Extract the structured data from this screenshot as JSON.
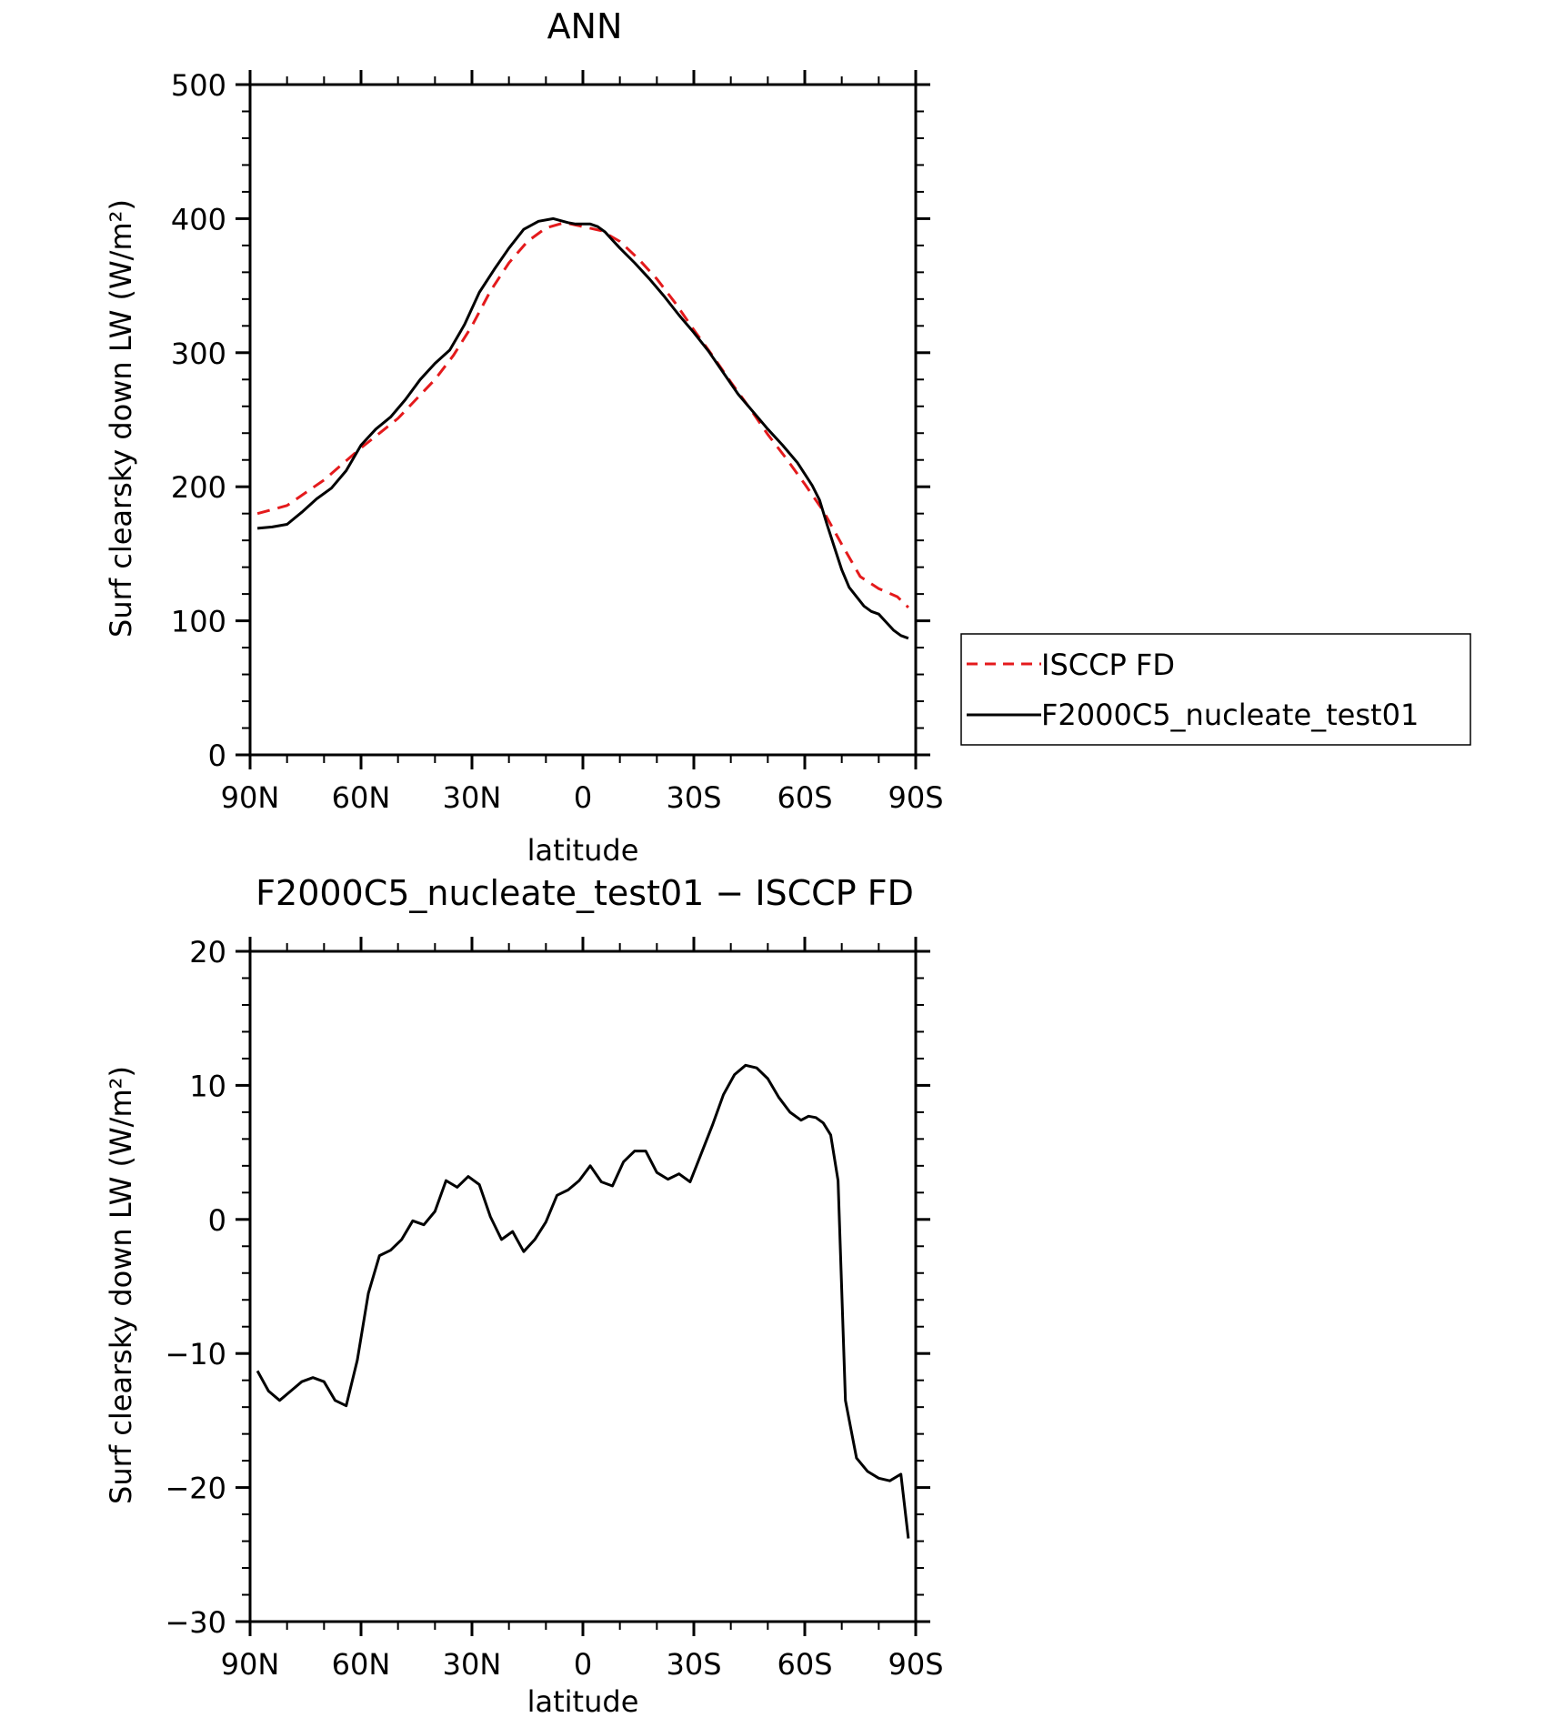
{
  "chart_data": [
    {
      "type": "line",
      "title": "ANN",
      "xlabel": "latitude",
      "ylabel": "Surf clearsky down LW (W/m²)",
      "xlim": [
        90,
        -90
      ],
      "ylim": [
        0,
        500
      ],
      "xticks": [
        90,
        60,
        30,
        0,
        -30,
        -60,
        -90
      ],
      "xtick_labels": [
        "90N",
        "60N",
        "30N",
        "0",
        "30S",
        "60S",
        "90S"
      ],
      "yticks": [
        0,
        100,
        200,
        300,
        400,
        500
      ],
      "ytick_labels": [
        "0",
        "100",
        "200",
        "300",
        "400",
        "500"
      ],
      "legend": {
        "placement": "right"
      },
      "series": [
        {
          "name": "ISCCP FD",
          "color": "#e41a1c",
          "dash": "dashed",
          "x": [
            88,
            80,
            70,
            60,
            50,
            40,
            35,
            30,
            25,
            20,
            15,
            10,
            5,
            0,
            -5,
            -10,
            -15,
            -20,
            -25,
            -30,
            -35,
            -40,
            -45,
            -50,
            -55,
            -60,
            -65,
            -70,
            -75,
            -80,
            -85,
            -88
          ],
          "y": [
            180,
            186,
            205,
            229,
            251,
            280,
            298,
            320,
            346,
            367,
            383,
            393,
            397,
            394,
            391,
            383,
            370,
            355,
            337,
            317,
            298,
            278,
            259,
            239,
            221,
            202,
            182,
            157,
            133,
            124,
            118,
            110
          ]
        },
        {
          "name": "F2000C5_nucleate_test01",
          "color": "#000000",
          "dash": "solid",
          "x": [
            88,
            84,
            80,
            76,
            72,
            68,
            64,
            60,
            56,
            52,
            48,
            44,
            40,
            36,
            32,
            28,
            24,
            20,
            16,
            12,
            8,
            4,
            2,
            0,
            -2,
            -4,
            -6,
            -8,
            -10,
            -14,
            -18,
            -22,
            -26,
            -30,
            -34,
            -38,
            -42,
            -46,
            -50,
            -54,
            -58,
            -62,
            -64,
            -66,
            -68,
            -70,
            -72,
            -74,
            -76,
            -78,
            -80,
            -82,
            -84,
            -86,
            -88
          ],
          "y": [
            169,
            170,
            172,
            181,
            191,
            199,
            212,
            231,
            243,
            252,
            265,
            280,
            292,
            302,
            321,
            345,
            362,
            378,
            392,
            398,
            400,
            397,
            396,
            396,
            396,
            394,
            390,
            384,
            378,
            367,
            355,
            342,
            328,
            315,
            301,
            285,
            269,
            256,
            243,
            231,
            218,
            201,
            190,
            172,
            155,
            138,
            125,
            118,
            111,
            107,
            105,
            99,
            93,
            89,
            87
          ]
        }
      ]
    },
    {
      "type": "line",
      "title": "F2000C5_nucleate_test01 − ISCCP FD",
      "xlabel": "latitude",
      "ylabel": "Surf clearsky down LW (W/m²)",
      "xlim": [
        90,
        -90
      ],
      "ylim": [
        -30,
        20
      ],
      "xticks": [
        90,
        60,
        30,
        0,
        -30,
        -60,
        -90
      ],
      "xtick_labels": [
        "90N",
        "60N",
        "30N",
        "0",
        "30S",
        "60S",
        "90S"
      ],
      "yticks": [
        -30,
        -20,
        -10,
        0,
        10,
        20
      ],
      "ytick_labels": [
        "−30",
        "−20",
        "−10",
        "0",
        "10",
        "20"
      ],
      "series": [
        {
          "color": "#000000",
          "dash": "solid",
          "x": [
            88,
            85,
            82,
            79,
            76,
            73,
            70,
            67,
            64,
            61,
            58,
            55,
            52,
            49,
            46,
            43,
            40,
            37,
            34,
            31,
            28,
            25,
            22,
            19,
            16,
            13,
            10,
            7,
            4,
            1,
            -2,
            -5,
            -8,
            -11,
            -14,
            -17,
            -20,
            -23,
            -26,
            -29,
            -32,
            -35,
            -38,
            -41,
            -44,
            -47,
            -50,
            -53,
            -56,
            -59,
            -61,
            -63,
            -65,
            -67,
            -69,
            -71,
            -74,
            -77,
            -80,
            -83,
            -86,
            -88
          ],
          "y": [
            -11.3,
            -12.8,
            -13.5,
            -12.8,
            -12.1,
            -11.8,
            -12.1,
            -13.5,
            -13.9,
            -10.5,
            -5.5,
            -2.7,
            -2.3,
            -1.5,
            -0.1,
            -0.4,
            0.6,
            2.9,
            2.4,
            3.2,
            2.6,
            0.2,
            -1.5,
            -0.9,
            -2.4,
            -1.5,
            -0.2,
            1.8,
            2.2,
            2.9,
            4.0,
            2.8,
            2.5,
            4.3,
            5.1,
            5.1,
            3.5,
            3.0,
            3.4,
            2.8,
            4.9,
            7.0,
            9.3,
            10.8,
            11.5,
            11.3,
            10.5,
            9.1,
            8.0,
            7.4,
            7.7,
            7.6,
            7.2,
            6.3,
            2.9,
            -13.5,
            -17.8,
            -18.8,
            -19.3,
            -19.5,
            -19.0,
            -23.8
          ]
        }
      ]
    }
  ]
}
